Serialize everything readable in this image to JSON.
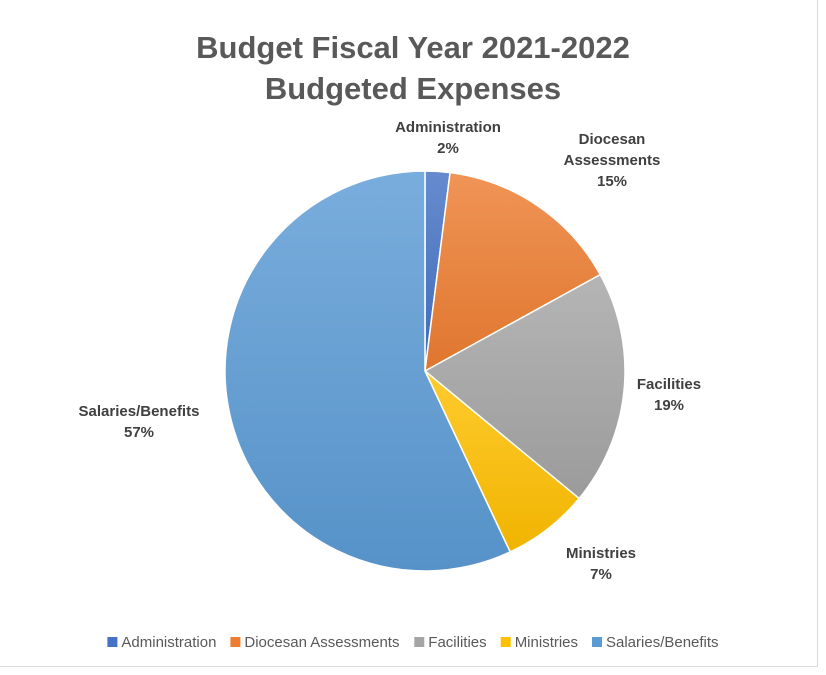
{
  "chart_data": {
    "type": "pie",
    "title": [
      "Budget Fiscal Year 2021-2022",
      "Budgeted Expenses"
    ],
    "categories": [
      "Administration",
      "Diocesan Assessments",
      "Facilities",
      "Ministries",
      "Salaries/Benefits"
    ],
    "values": [
      2,
      15,
      19,
      7,
      57
    ],
    "value_labels": [
      "2%",
      "15%",
      "19%",
      "7%",
      "57%"
    ],
    "label_lines": [
      [
        "Administration"
      ],
      [
        "Diocesan",
        "Assessments"
      ],
      [
        "Facilities"
      ],
      [
        "Ministries"
      ],
      [
        "Salaries/Benefits"
      ]
    ],
    "colors": [
      "#4472c4",
      "#ed7d31",
      "#a5a5a5",
      "#ffc000",
      "#5b9bd5"
    ],
    "legend_position": "bottom",
    "start_angle_deg": 0,
    "direction": "clockwise"
  }
}
